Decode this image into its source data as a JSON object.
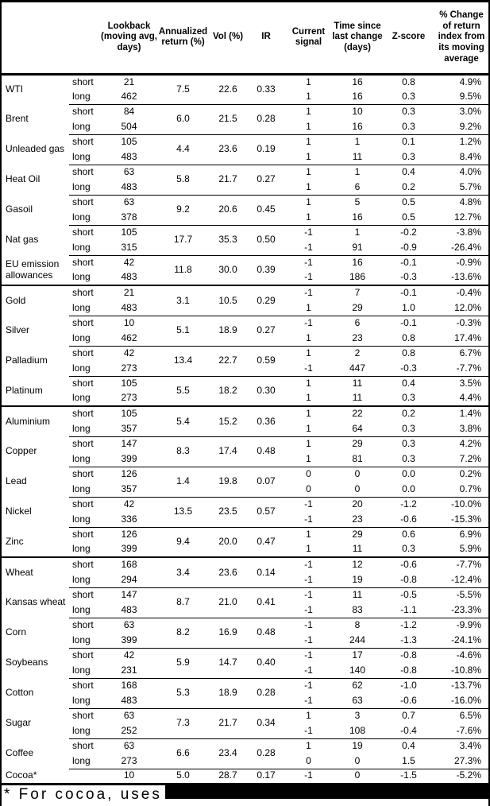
{
  "table": {
    "columns": [
      {
        "key": "name",
        "label": ""
      },
      {
        "key": "leg",
        "label": ""
      },
      {
        "key": "lookback",
        "label": "Lookback (moving avg, days)"
      },
      {
        "key": "ann",
        "label": "Annualized return (%)"
      },
      {
        "key": "vol",
        "label": "Vol (%)"
      },
      {
        "key": "ir",
        "label": "IR"
      },
      {
        "key": "signal",
        "label": "Current signal"
      },
      {
        "key": "time",
        "label": "Time since last change (days)"
      },
      {
        "key": "z",
        "label": "Z-score"
      },
      {
        "key": "chg",
        "label": "% Change of return index from its moving average"
      }
    ],
    "groups": [
      {
        "name": "WTI",
        "section_start": false,
        "ann": "7.5",
        "vol": "22.6",
        "ir": "0.33",
        "legs": [
          {
            "leg": "short",
            "lookback": "21",
            "signal": "1",
            "time": "16",
            "z": "0.8",
            "chg": "4.9%"
          },
          {
            "leg": "long",
            "lookback": "462",
            "signal": "1",
            "time": "16",
            "z": "0.3",
            "chg": "9.5%"
          }
        ]
      },
      {
        "name": "Brent",
        "section_start": false,
        "ann": "6.0",
        "vol": "21.5",
        "ir": "0.28",
        "legs": [
          {
            "leg": "short",
            "lookback": "84",
            "signal": "1",
            "time": "10",
            "z": "0.3",
            "chg": "3.0%"
          },
          {
            "leg": "long",
            "lookback": "504",
            "signal": "1",
            "time": "16",
            "z": "0.3",
            "chg": "9.2%"
          }
        ]
      },
      {
        "name": "Unleaded gas",
        "section_start": false,
        "ann": "4.4",
        "vol": "23.6",
        "ir": "0.19",
        "legs": [
          {
            "leg": "short",
            "lookback": "105",
            "signal": "1",
            "time": "1",
            "z": "0.1",
            "chg": "1.2%"
          },
          {
            "leg": "long",
            "lookback": "483",
            "signal": "1",
            "time": "11",
            "z": "0.3",
            "chg": "8.4%"
          }
        ]
      },
      {
        "name": "Heat Oil",
        "section_start": false,
        "ann": "5.8",
        "vol": "21.7",
        "ir": "0.27",
        "legs": [
          {
            "leg": "short",
            "lookback": "63",
            "signal": "1",
            "time": "1",
            "z": "0.4",
            "chg": "4.0%"
          },
          {
            "leg": "long",
            "lookback": "483",
            "signal": "1",
            "time": "6",
            "z": "0.2",
            "chg": "5.7%"
          }
        ]
      },
      {
        "name": "Gasoil",
        "section_start": false,
        "ann": "9.2",
        "vol": "20.6",
        "ir": "0.45",
        "legs": [
          {
            "leg": "short",
            "lookback": "63",
            "signal": "1",
            "time": "5",
            "z": "0.5",
            "chg": "4.8%"
          },
          {
            "leg": "long",
            "lookback": "378",
            "signal": "1",
            "time": "16",
            "z": "0.5",
            "chg": "12.7%"
          }
        ]
      },
      {
        "name": "Nat gas",
        "section_start": false,
        "ann": "17.7",
        "vol": "35.3",
        "ir": "0.50",
        "legs": [
          {
            "leg": "short",
            "lookback": "105",
            "signal": "-1",
            "time": "1",
            "z": "-0.2",
            "chg": "-3.8%"
          },
          {
            "leg": "long",
            "lookback": "315",
            "signal": "-1",
            "time": "91",
            "z": "-0.9",
            "chg": "-26.4%"
          }
        ]
      },
      {
        "name": "EU emission allowances",
        "section_start": false,
        "ann": "11.8",
        "vol": "30.0",
        "ir": "0.39",
        "legs": [
          {
            "leg": "short",
            "lookback": "42",
            "signal": "-1",
            "time": "16",
            "z": "-0.1",
            "chg": "-0.9%"
          },
          {
            "leg": "long",
            "lookback": "483",
            "signal": "-1",
            "time": "186",
            "z": "-0.3",
            "chg": "-13.6%"
          }
        ]
      },
      {
        "name": "Gold",
        "section_start": true,
        "ann": "3.1",
        "vol": "10.5",
        "ir": "0.29",
        "legs": [
          {
            "leg": "short",
            "lookback": "21",
            "signal": "-1",
            "time": "7",
            "z": "-0.1",
            "chg": "-0.4%"
          },
          {
            "leg": "long",
            "lookback": "483",
            "signal": "1",
            "time": "29",
            "z": "1.0",
            "chg": "12.0%"
          }
        ]
      },
      {
        "name": "Silver",
        "section_start": false,
        "ann": "5.1",
        "vol": "18.9",
        "ir": "0.27",
        "legs": [
          {
            "leg": "short",
            "lookback": "10",
            "signal": "-1",
            "time": "6",
            "z": "-0.1",
            "chg": "-0.3%"
          },
          {
            "leg": "long",
            "lookback": "462",
            "signal": "1",
            "time": "23",
            "z": "0.8",
            "chg": "17.4%"
          }
        ]
      },
      {
        "name": "Palladium",
        "section_start": false,
        "ann": "13.4",
        "vol": "22.7",
        "ir": "0.59",
        "legs": [
          {
            "leg": "short",
            "lookback": "42",
            "signal": "1",
            "time": "2",
            "z": "0.8",
            "chg": "6.7%"
          },
          {
            "leg": "long",
            "lookback": "273",
            "signal": "-1",
            "time": "447",
            "z": "-0.3",
            "chg": "-7.7%"
          }
        ]
      },
      {
        "name": "Platinum",
        "section_start": false,
        "ann": "5.5",
        "vol": "18.2",
        "ir": "0.30",
        "legs": [
          {
            "leg": "short",
            "lookback": "105",
            "signal": "1",
            "time": "11",
            "z": "0.4",
            "chg": "3.5%"
          },
          {
            "leg": "long",
            "lookback": "273",
            "signal": "1",
            "time": "11",
            "z": "0.3",
            "chg": "4.4%"
          }
        ]
      },
      {
        "name": "Aluminium",
        "section_start": true,
        "ann": "5.4",
        "vol": "15.2",
        "ir": "0.36",
        "legs": [
          {
            "leg": "short",
            "lookback": "105",
            "signal": "1",
            "time": "22",
            "z": "0.2",
            "chg": "1.4%"
          },
          {
            "leg": "long",
            "lookback": "357",
            "signal": "1",
            "time": "64",
            "z": "0.3",
            "chg": "3.8%"
          }
        ]
      },
      {
        "name": "Copper",
        "section_start": false,
        "ann": "8.3",
        "vol": "17.4",
        "ir": "0.48",
        "legs": [
          {
            "leg": "short",
            "lookback": "147",
            "signal": "1",
            "time": "29",
            "z": "0.3",
            "chg": "4.2%"
          },
          {
            "leg": "long",
            "lookback": "399",
            "signal": "1",
            "time": "81",
            "z": "0.3",
            "chg": "7.2%"
          }
        ]
      },
      {
        "name": "Lead",
        "section_start": false,
        "ann": "1.4",
        "vol": "19.8",
        "ir": "0.07",
        "legs": [
          {
            "leg": "short",
            "lookback": "126",
            "signal": "0",
            "time": "0",
            "z": "0.0",
            "chg": "0.2%"
          },
          {
            "leg": "long",
            "lookback": "357",
            "signal": "0",
            "time": "0",
            "z": "0.0",
            "chg": "0.7%"
          }
        ]
      },
      {
        "name": "Nickel",
        "section_start": false,
        "ann": "13.5",
        "vol": "23.5",
        "ir": "0.57",
        "legs": [
          {
            "leg": "short",
            "lookback": "42",
            "signal": "-1",
            "time": "20",
            "z": "-1.2",
            "chg": "-10.0%"
          },
          {
            "leg": "long",
            "lookback": "336",
            "signal": "-1",
            "time": "23",
            "z": "-0.6",
            "chg": "-15.3%"
          }
        ]
      },
      {
        "name": "Zinc",
        "section_start": false,
        "ann": "9.4",
        "vol": "20.0",
        "ir": "0.47",
        "legs": [
          {
            "leg": "short",
            "lookback": "126",
            "signal": "1",
            "time": "29",
            "z": "0.6",
            "chg": "6.9%"
          },
          {
            "leg": "long",
            "lookback": "399",
            "signal": "1",
            "time": "11",
            "z": "0.3",
            "chg": "5.9%"
          }
        ]
      },
      {
        "name": "Wheat",
        "section_start": true,
        "ann": "3.4",
        "vol": "23.6",
        "ir": "0.14",
        "legs": [
          {
            "leg": "short",
            "lookback": "168",
            "signal": "-1",
            "time": "12",
            "z": "-0.6",
            "chg": "-7.7%"
          },
          {
            "leg": "long",
            "lookback": "294",
            "signal": "-1",
            "time": "19",
            "z": "-0.8",
            "chg": "-12.4%"
          }
        ]
      },
      {
        "name": "Kansas wheat",
        "section_start": false,
        "ann": "8.7",
        "vol": "21.0",
        "ir": "0.41",
        "legs": [
          {
            "leg": "short",
            "lookback": "147",
            "signal": "-1",
            "time": "11",
            "z": "-0.5",
            "chg": "-5.5%"
          },
          {
            "leg": "long",
            "lookback": "483",
            "signal": "-1",
            "time": "83",
            "z": "-1.1",
            "chg": "-23.3%"
          }
        ]
      },
      {
        "name": "Corn",
        "section_start": false,
        "ann": "8.2",
        "vol": "16.9",
        "ir": "0.48",
        "legs": [
          {
            "leg": "short",
            "lookback": "63",
            "signal": "-1",
            "time": "8",
            "z": "-1.2",
            "chg": "-9.9%"
          },
          {
            "leg": "long",
            "lookback": "399",
            "signal": "-1",
            "time": "244",
            "z": "-1.3",
            "chg": "-24.1%"
          }
        ]
      },
      {
        "name": "Soybeans",
        "section_start": false,
        "ann": "5.9",
        "vol": "14.7",
        "ir": "0.40",
        "legs": [
          {
            "leg": "short",
            "lookback": "42",
            "signal": "-1",
            "time": "17",
            "z": "-0.8",
            "chg": "-4.6%"
          },
          {
            "leg": "long",
            "lookback": "231",
            "signal": "-1",
            "time": "140",
            "z": "-0.8",
            "chg": "-10.8%"
          }
        ]
      },
      {
        "name": "Cotton",
        "section_start": false,
        "ann": "5.3",
        "vol": "18.9",
        "ir": "0.28",
        "legs": [
          {
            "leg": "short",
            "lookback": "168",
            "signal": "-1",
            "time": "62",
            "z": "-1.0",
            "chg": "-13.7%"
          },
          {
            "leg": "long",
            "lookback": "483",
            "signal": "-1",
            "time": "63",
            "z": "-0.6",
            "chg": "-16.0%"
          }
        ]
      },
      {
        "name": "Sugar",
        "section_start": false,
        "ann": "7.3",
        "vol": "21.7",
        "ir": "0.34",
        "legs": [
          {
            "leg": "short",
            "lookback": "63",
            "signal": "1",
            "time": "3",
            "z": "0.7",
            "chg": "6.5%"
          },
          {
            "leg": "long",
            "lookback": "252",
            "signal": "-1",
            "time": "108",
            "z": "-0.4",
            "chg": "-7.6%"
          }
        ]
      },
      {
        "name": "Coffee",
        "section_start": false,
        "ann": "6.6",
        "vol": "23.4",
        "ir": "0.28",
        "legs": [
          {
            "leg": "short",
            "lookback": "63",
            "signal": "1",
            "time": "19",
            "z": "0.4",
            "chg": "3.4%"
          },
          {
            "leg": "long",
            "lookback": "273",
            "signal": "0",
            "time": "0",
            "z": "1.5",
            "chg": "27.3%"
          }
        ]
      },
      {
        "name": "Cocoa*",
        "section_start": false,
        "ann": "5.0",
        "vol": "28.7",
        "ir": "0.17",
        "legs": [
          {
            "leg": "",
            "lookback": "10",
            "signal": "-1",
            "time": "0",
            "z": "-1.5",
            "chg": "-5.2%"
          }
        ]
      }
    ]
  },
  "footnote": {
    "text": "* For cocoa, uses",
    "redacted": true
  }
}
